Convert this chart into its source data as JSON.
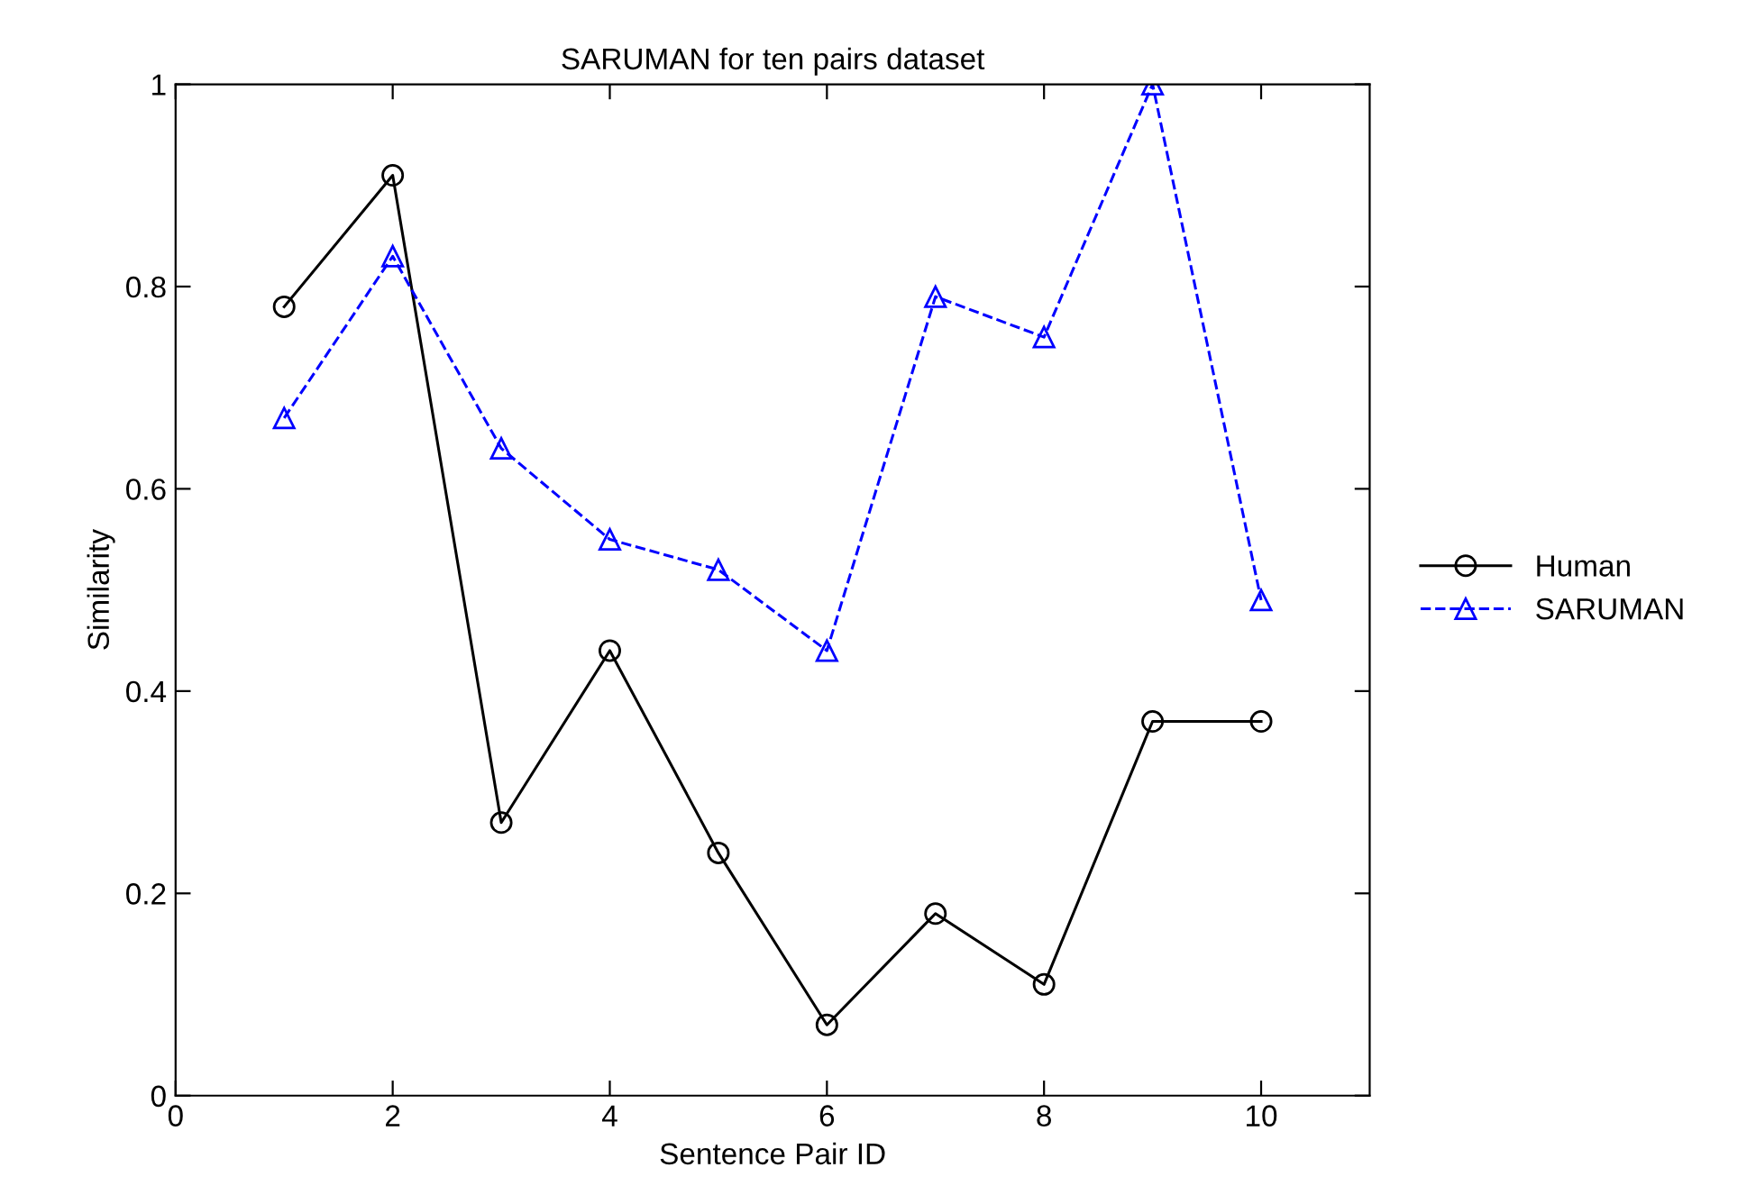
{
  "chart_data": {
    "type": "line",
    "title": "SARUMAN for ten pairs dataset",
    "xlabel": "Sentence Pair ID",
    "ylabel": "Similarity",
    "x": [
      1,
      2,
      3,
      4,
      5,
      6,
      7,
      8,
      9,
      10
    ],
    "series": [
      {
        "name": "Human",
        "color": "#000000",
        "values": [
          0.78,
          0.91,
          0.27,
          0.44,
          0.24,
          0.07,
          0.18,
          0.11,
          0.37,
          0.37
        ],
        "marker": "circle",
        "line_style": "solid"
      },
      {
        "name": "SARUMAN",
        "color": "#0000ff",
        "values": [
          0.67,
          0.83,
          0.64,
          0.55,
          0.52,
          0.44,
          0.79,
          0.75,
          1.0,
          0.49
        ],
        "marker": "triangle",
        "line_style": "dashed"
      }
    ],
    "xlim": [
      0,
      11
    ],
    "xticks": [
      0,
      2,
      4,
      6,
      8,
      10
    ],
    "ylim": [
      0,
      1
    ],
    "yticks": [
      0,
      0.2,
      0.4,
      0.6,
      0.8,
      1
    ],
    "grid": false,
    "legend": "right"
  }
}
